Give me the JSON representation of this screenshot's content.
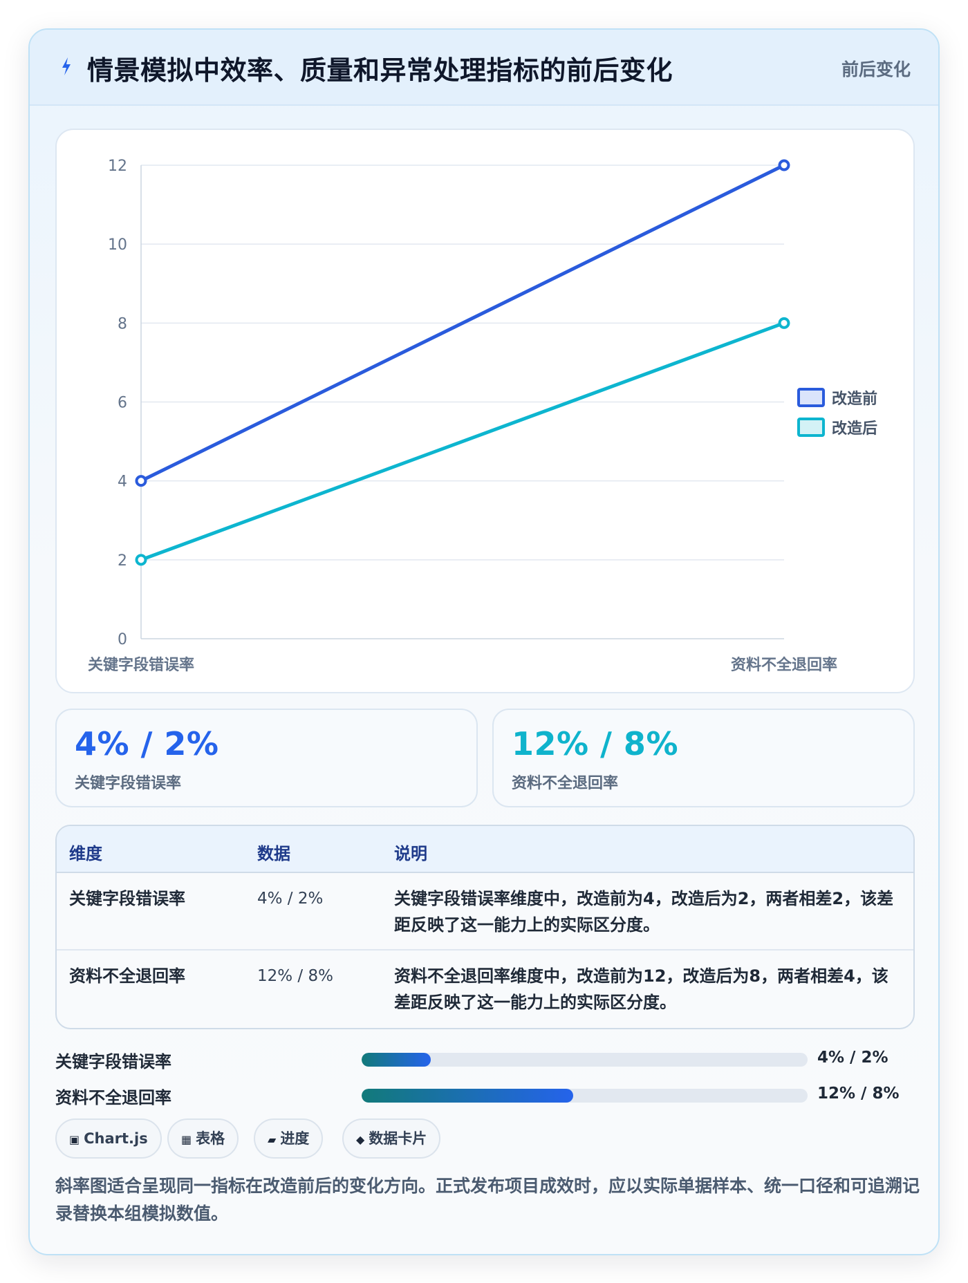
{
  "header": {
    "title": "情景模拟中效率、质量和异常处理指标的前后变化",
    "tag": "前后变化",
    "icon": "lightning-icon"
  },
  "chart_data": {
    "type": "line",
    "categories": [
      "关键字段错误率",
      "资料不全退回率"
    ],
    "series": [
      {
        "name": "改造前",
        "values": [
          4,
          12
        ],
        "color": "#2a5bdc"
      },
      {
        "name": "改造后",
        "values": [
          2,
          8
        ],
        "color": "#0db5cf"
      }
    ],
    "ylim": [
      0,
      12
    ],
    "yticks": [
      0,
      2,
      4,
      6,
      8,
      10,
      12
    ],
    "grid": true,
    "legend_position": "right"
  },
  "kpis": [
    {
      "value": "4% / 2%",
      "label": "关键字段错误率",
      "color": "#2563eb"
    },
    {
      "value": "12% / 8%",
      "label": "资料不全退回率",
      "color": "#0fb3cc"
    }
  ],
  "table": {
    "headers": [
      "维度",
      "数据",
      "说明"
    ],
    "rows": [
      [
        "关键字段错误率",
        "4% / 2%",
        "关键字段错误率维度中，改造前为4，改造后为2，两者相差2，该差距反映了这一能力上的实际区分度。"
      ],
      [
        "资料不全退回率",
        "12% / 8%",
        "资料不全退回率维度中，改造前为12，改造后为8，两者相差4，该差距反映了这一能力上的实际区分度。"
      ]
    ]
  },
  "progress": [
    {
      "label": "关键字段错误率",
      "value": "4% / 2%",
      "fill_fraction": 0.155
    },
    {
      "label": "资料不全退回率",
      "value": "12% / 8%",
      "fill_fraction": 0.475
    }
  ],
  "chips": [
    {
      "label": "Chart.js",
      "icon": "▣"
    },
    {
      "label": "表格",
      "icon": "▦"
    },
    {
      "label": "进度",
      "icon": "▰"
    },
    {
      "label": "数据卡片",
      "icon": "◆"
    }
  ],
  "footnote": "斜率图适合呈现同一指标在改造前后的变化方向。正式发布项目成效时，应以实际单据样本、统一口径和可追溯记录替换本组模拟数值。"
}
